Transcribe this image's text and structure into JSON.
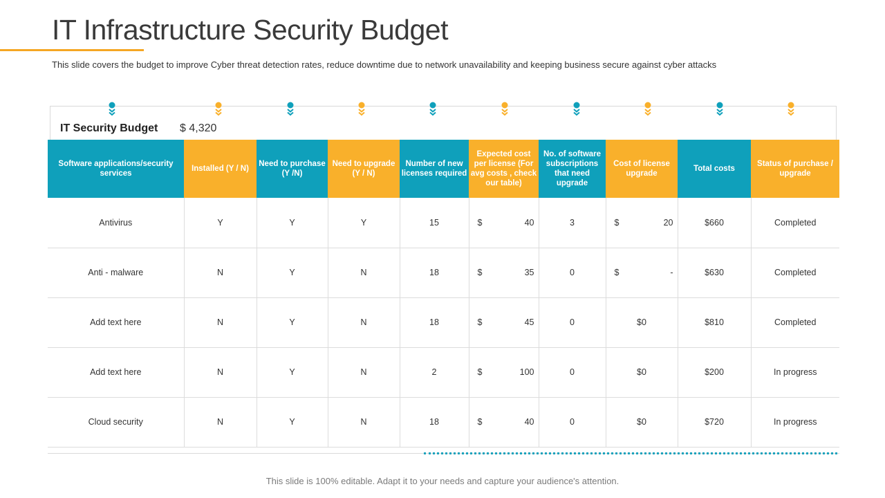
{
  "slide": {
    "title": "IT Infrastructure Security Budget",
    "subtitle": "This slide covers the budget to improve Cyber threat detection rates, reduce downtime due to network unavailability and keeping business secure against cyber attacks",
    "footer": "This slide is 100% editable. Adapt it to your needs and capture your audience's attention."
  },
  "budget": {
    "label": "IT Security Budget",
    "value": "$ 4,320"
  },
  "colors": {
    "teal": "#0FA0BB",
    "amber": "#F9B02B",
    "accent_line": "#F5A623"
  },
  "markers": [
    "teal",
    "amber",
    "teal",
    "amber",
    "teal",
    "amber",
    "teal",
    "amber",
    "teal",
    "amber"
  ],
  "table": {
    "headers": [
      {
        "label": "Software applications/security services",
        "color": "teal"
      },
      {
        "label": "Installed (Y / N)",
        "color": "amber"
      },
      {
        "label": "Need to purchase (Y /N)",
        "color": "teal"
      },
      {
        "label": "Need to upgrade (Y / N)",
        "color": "amber"
      },
      {
        "label": "Number of new licenses required",
        "color": "teal"
      },
      {
        "label": "Expected cost per license (For avg costs , check our table)",
        "color": "amber"
      },
      {
        "label": "No. of software subscriptions that need upgrade",
        "color": "teal"
      },
      {
        "label": "Cost of license upgrade",
        "color": "amber"
      },
      {
        "label": "Total costs",
        "color": "teal"
      },
      {
        "label": "Status of purchase / upgrade",
        "color": "amber"
      }
    ],
    "rows": [
      {
        "service": "Antivirus",
        "installed": "Y",
        "purchase": "Y",
        "upgrade": "Y",
        "licenses": "15",
        "cost_sym": "$",
        "cost_val": "40",
        "subs": "3",
        "lic_cost": {
          "sym": "$",
          "val": "20"
        },
        "total": "$660",
        "status": "Completed"
      },
      {
        "service": "Anti - malware",
        "installed": "N",
        "purchase": "Y",
        "upgrade": "N",
        "licenses": "18",
        "cost_sym": "$",
        "cost_val": "35",
        "subs": "0",
        "lic_cost": {
          "sym": "$",
          "val": "-"
        },
        "total": "$630",
        "status": "Completed"
      },
      {
        "service": "Add text here",
        "installed": "N",
        "purchase": "Y",
        "upgrade": "N",
        "licenses": "18",
        "cost_sym": "$",
        "cost_val": "45",
        "subs": "0",
        "lic_cost": {
          "text": "$0"
        },
        "total": "$810",
        "status": "Completed"
      },
      {
        "service": "Add text here",
        "installed": "N",
        "purchase": "Y",
        "upgrade": "N",
        "licenses": "2",
        "cost_sym": "$",
        "cost_val": "100",
        "subs": "0",
        "lic_cost": {
          "text": "$0"
        },
        "total": "$200",
        "status": "In progress"
      },
      {
        "service": "Cloud security",
        "installed": "N",
        "purchase": "Y",
        "upgrade": "N",
        "licenses": "18",
        "cost_sym": "$",
        "cost_val": "40",
        "subs": "0",
        "lic_cost": {
          "text": "$0"
        },
        "total": "$720",
        "status": "In progress"
      }
    ]
  }
}
